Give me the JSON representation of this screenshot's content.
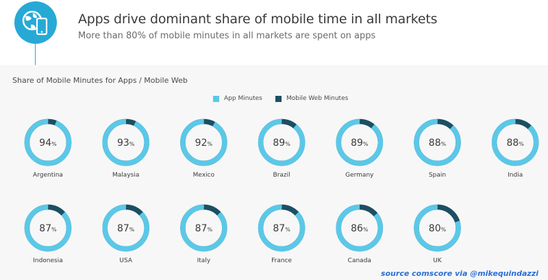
{
  "header": {
    "title": "Apps drive dominant share of mobile time in all markets",
    "subtitle": "More than 80% of mobile minutes in all markets are spent on apps",
    "icon": "globe-phone-icon"
  },
  "source": "source comscore via @mikequindazzi",
  "colors": {
    "app": "#5bc8e8",
    "web": "#1c4f63",
    "accent": "#27a9d6",
    "source": "#2a6fd6"
  },
  "chart_data": {
    "type": "pie",
    "title": "Share of Mobile Minutes for Apps / Mobile Web",
    "legend": [
      "App Minutes",
      "Mobile Web Minutes"
    ],
    "value_suffix": "%",
    "categories": [
      "Argentina",
      "Malaysia",
      "Mexico",
      "Brazil",
      "Germany",
      "Spain",
      "India",
      "Indonesia",
      "USA",
      "Italy",
      "France",
      "Canada",
      "UK"
    ],
    "series": [
      {
        "name": "App Minutes",
        "values": [
          94,
          93,
          92,
          89,
          89,
          88,
          88,
          87,
          87,
          87,
          87,
          86,
          80
        ]
      },
      {
        "name": "Mobile Web Minutes",
        "values": [
          6,
          7,
          8,
          11,
          11,
          12,
          12,
          13,
          13,
          13,
          13,
          14,
          20
        ]
      }
    ]
  }
}
